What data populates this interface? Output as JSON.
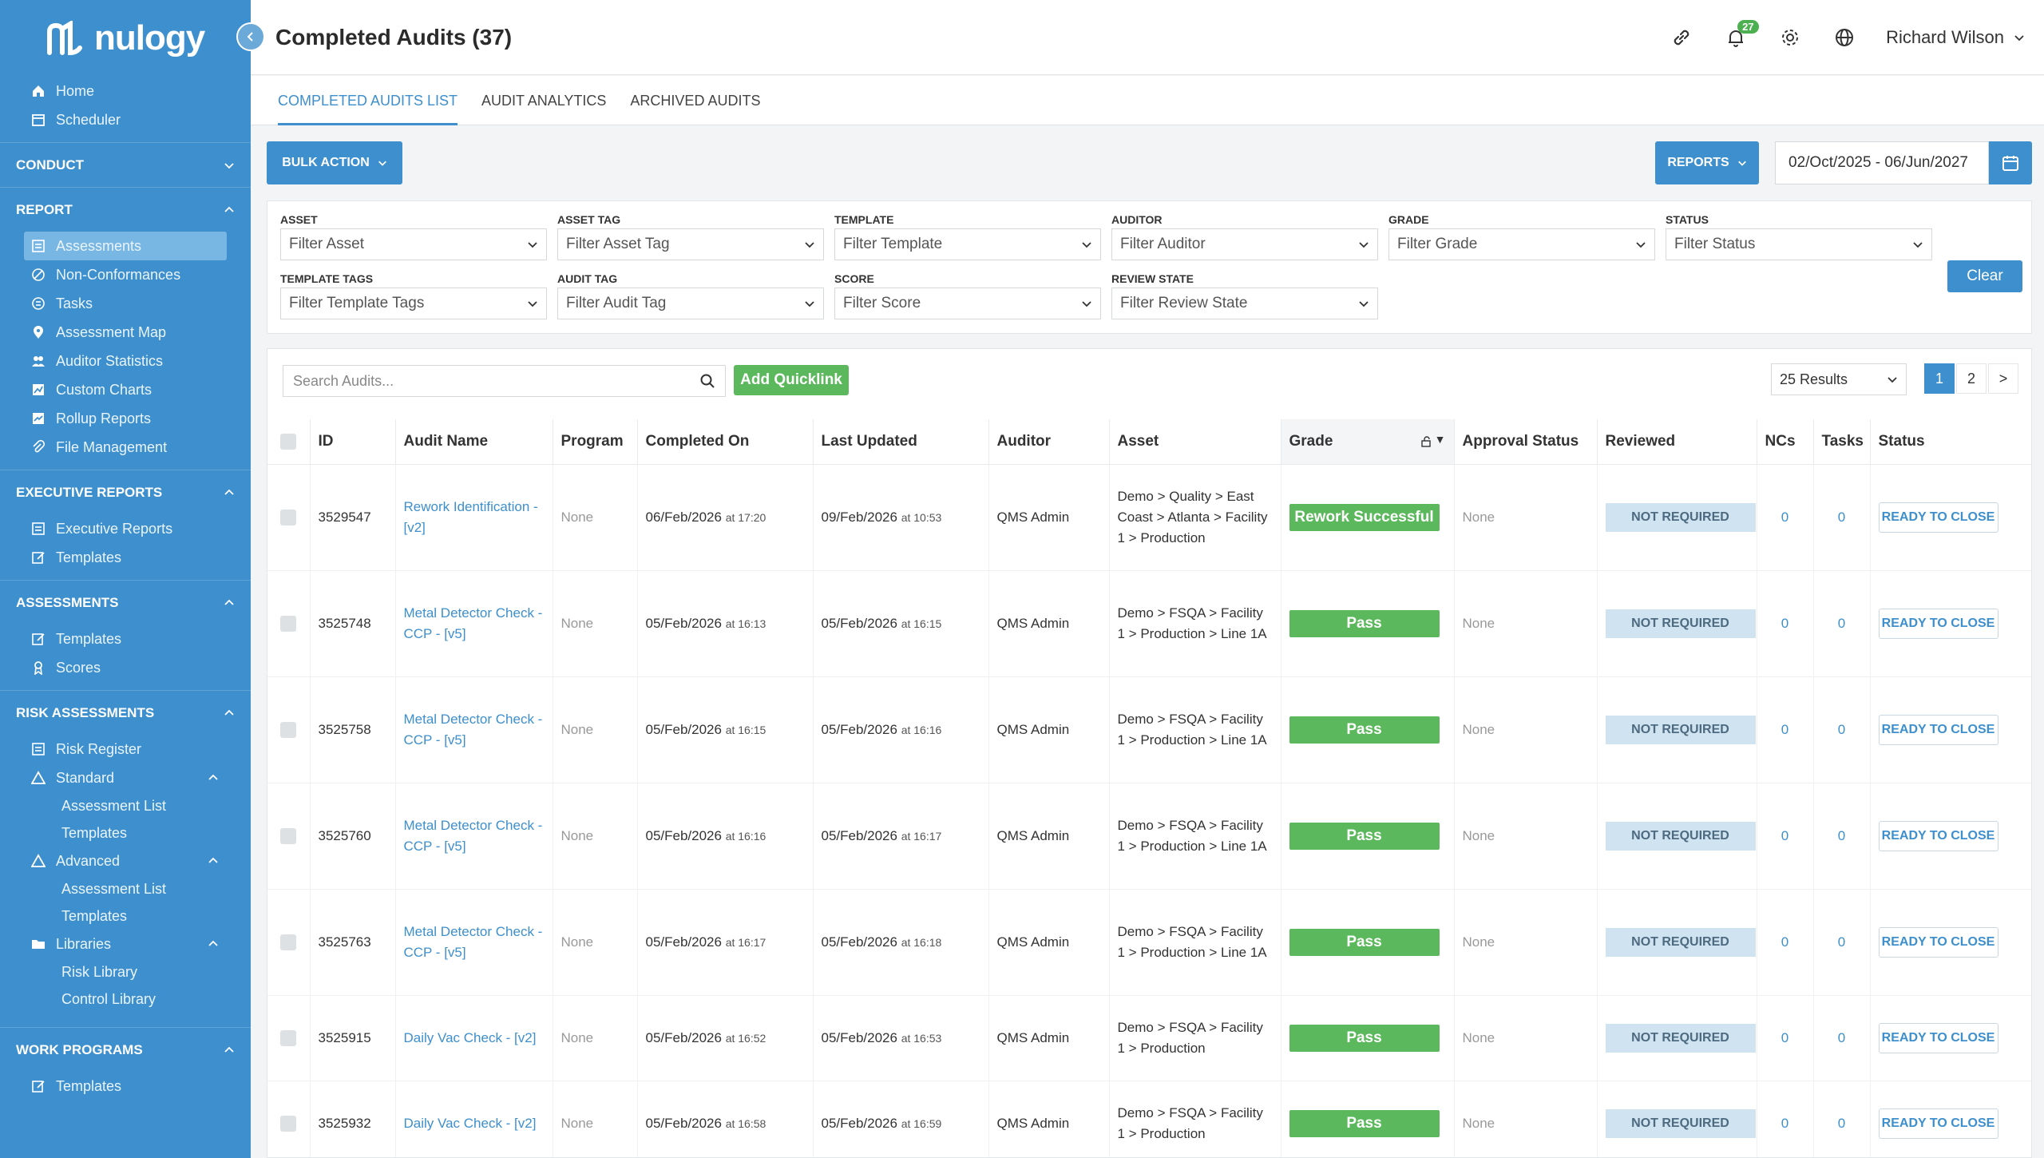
{
  "app": {
    "logo_text": "nulogy"
  },
  "header": {
    "title": "Completed Audits (37)",
    "notifications": "27",
    "user": "Richard Wilson"
  },
  "sidebar": {
    "top_links": [
      "Home",
      "Scheduler"
    ],
    "conduct": {
      "label": "CONDUCT"
    },
    "report": {
      "label": "REPORT",
      "items": [
        "Assessments",
        "Non-Conformances",
        "Tasks",
        "Assessment Map",
        "Auditor Statistics",
        "Custom Charts",
        "Rollup Reports",
        "File Management"
      ]
    },
    "executive_reports": {
      "label": "EXECUTIVE REPORTS",
      "items": [
        "Executive Reports",
        "Templates"
      ]
    },
    "assessments": {
      "label": "ASSESSMENTS",
      "items": [
        "Templates",
        "Scores"
      ]
    },
    "risk_assessments": {
      "label": "RISK ASSESSMENTS",
      "risk_register": "Risk Register",
      "standard": "Standard",
      "standard_items": [
        "Assessment List",
        "Templates"
      ],
      "advanced": "Advanced",
      "advanced_items": [
        "Assessment List",
        "Templates"
      ],
      "libraries": "Libraries",
      "libraries_items": [
        "Risk Library",
        "Control Library"
      ]
    },
    "work_programs": {
      "label": "WORK PROGRAMS",
      "items": [
        "Templates"
      ]
    }
  },
  "tabs": [
    "COMPLETED AUDITS LIST",
    "AUDIT ANALYTICS",
    "ARCHIVED AUDITS"
  ],
  "actions": {
    "bulk": "BULK ACTION",
    "reports": "REPORTS",
    "date_range": "02/Oct/2025 - 06/Jun/2027"
  },
  "filters": {
    "asset": {
      "label": "ASSET",
      "placeholder": "Filter Asset"
    },
    "asset_tag": {
      "label": "ASSET TAG",
      "placeholder": "Filter Asset Tag"
    },
    "template": {
      "label": "TEMPLATE",
      "placeholder": "Filter Template"
    },
    "auditor": {
      "label": "AUDITOR",
      "placeholder": "Filter Auditor"
    },
    "grade": {
      "label": "GRADE",
      "placeholder": "Filter Grade"
    },
    "status": {
      "label": "STATUS",
      "placeholder": "Filter Status"
    },
    "template_tags": {
      "label": "TEMPLATE TAGS",
      "placeholder": "Filter Template Tags"
    },
    "audit_tag": {
      "label": "AUDIT TAG",
      "placeholder": "Filter Audit Tag"
    },
    "score": {
      "label": "SCORE",
      "placeholder": "Filter Score"
    },
    "review_state": {
      "label": "REVIEW STATE",
      "placeholder": "Filter Review State"
    },
    "clear": "Clear"
  },
  "table_tools": {
    "search_placeholder": "Search Audits...",
    "quicklink": "Add Quicklink",
    "results": "25 Results",
    "pages": [
      "1",
      "2",
      ">"
    ]
  },
  "columns": [
    "ID",
    "Audit Name",
    "Program",
    "Completed On",
    "Last Updated",
    "Auditor",
    "Asset",
    "Grade",
    "Approval Status",
    "Reviewed",
    "NCs",
    "Tasks",
    "Status"
  ],
  "rows": [
    {
      "id": "3529547",
      "name": "Rework Identification - [v2]",
      "program": "None",
      "completed_date": "06/Feb/2026",
      "completed_time": "at 17:20",
      "updated_date": "09/Feb/2026",
      "updated_time": "at 10:53",
      "auditor": "QMS Admin",
      "asset": "Demo > Quality > East Coast > Atlanta > Facility 1 > Production",
      "grade": "Rework Successful",
      "approval": "None",
      "reviewed": "NOT REQUIRED",
      "ncs": "0",
      "tasks": "0",
      "status": "READY TO CLOSE"
    },
    {
      "id": "3525748",
      "name": "Metal Detector Check - CCP - [v5]",
      "program": "None",
      "completed_date": "05/Feb/2026",
      "completed_time": "at 16:13",
      "updated_date": "05/Feb/2026",
      "updated_time": "at 16:15",
      "auditor": "QMS Admin",
      "asset": "Demo > FSQA > Facility 1 > Production > Line 1A",
      "grade": "Pass",
      "approval": "None",
      "reviewed": "NOT REQUIRED",
      "ncs": "0",
      "tasks": "0",
      "status": "READY TO CLOSE"
    },
    {
      "id": "3525758",
      "name": "Metal Detector Check - CCP - [v5]",
      "program": "None",
      "completed_date": "05/Feb/2026",
      "completed_time": "at 16:15",
      "updated_date": "05/Feb/2026",
      "updated_time": "at 16:16",
      "auditor": "QMS Admin",
      "asset": "Demo > FSQA > Facility 1 > Production > Line 1A",
      "grade": "Pass",
      "approval": "None",
      "reviewed": "NOT REQUIRED",
      "ncs": "0",
      "tasks": "0",
      "status": "READY TO CLOSE"
    },
    {
      "id": "3525760",
      "name": "Metal Detector Check - CCP - [v5]",
      "program": "None",
      "completed_date": "05/Feb/2026",
      "completed_time": "at 16:16",
      "updated_date": "05/Feb/2026",
      "updated_time": "at 16:17",
      "auditor": "QMS Admin",
      "asset": "Demo > FSQA > Facility 1 > Production > Line 1A",
      "grade": "Pass",
      "approval": "None",
      "reviewed": "NOT REQUIRED",
      "ncs": "0",
      "tasks": "0",
      "status": "READY TO CLOSE"
    },
    {
      "id": "3525763",
      "name": "Metal Detector Check - CCP - [v5]",
      "program": "None",
      "completed_date": "05/Feb/2026",
      "completed_time": "at 16:17",
      "updated_date": "05/Feb/2026",
      "updated_time": "at 16:18",
      "auditor": "QMS Admin",
      "asset": "Demo > FSQA > Facility 1 > Production > Line 1A",
      "grade": "Pass",
      "approval": "None",
      "reviewed": "NOT REQUIRED",
      "ncs": "0",
      "tasks": "0",
      "status": "READY TO CLOSE"
    },
    {
      "id": "3525915",
      "name": "Daily Vac Check - [v2]",
      "program": "None",
      "completed_date": "05/Feb/2026",
      "completed_time": "at 16:52",
      "updated_date": "05/Feb/2026",
      "updated_time": "at 16:53",
      "auditor": "QMS Admin",
      "asset": "Demo > FSQA > Facility 1 > Production",
      "grade": "Pass",
      "approval": "None",
      "reviewed": "NOT REQUIRED",
      "ncs": "0",
      "tasks": "0",
      "status": "READY TO CLOSE"
    },
    {
      "id": "3525932",
      "name": "Daily Vac Check - [v2]",
      "program": "None",
      "completed_date": "05/Feb/2026",
      "completed_time": "at 16:58",
      "updated_date": "05/Feb/2026",
      "updated_time": "at 16:59",
      "auditor": "QMS Admin",
      "asset": "Demo > FSQA > Facility 1 > Production",
      "grade": "Pass",
      "approval": "None",
      "reviewed": "NOT REQUIRED",
      "ncs": "0",
      "tasks": "0",
      "status": "READY TO CLOSE"
    }
  ],
  "colors": {
    "primary": "#3d8fcd",
    "success": "#5cb85c",
    "reviewed_bg": "#cfe3f0"
  },
  "icons": [
    "home-icon",
    "calendar-icon",
    "link-icon",
    "bell-icon",
    "gear-icon",
    "globe-icon",
    "search-icon"
  ]
}
